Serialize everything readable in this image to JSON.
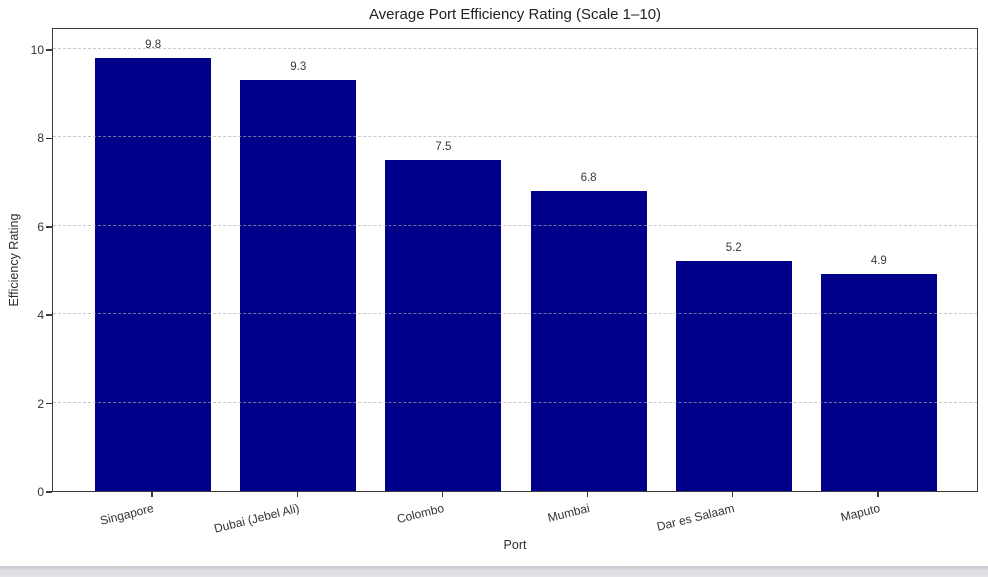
{
  "chart_data": {
    "type": "bar",
    "title": "Average Port Efficiency Rating (Scale 1–10)",
    "xlabel": "Port",
    "ylabel": "Efficiency Rating",
    "categories": [
      "Singapore",
      "Dubai (Jebel Ali)",
      "Colombo",
      "Mumbai",
      "Dar es Salaam",
      "Maputo"
    ],
    "values": [
      9.8,
      9.3,
      7.5,
      6.8,
      5.2,
      4.9
    ],
    "value_labels": [
      "9.8",
      "9.3",
      "7.5",
      "6.8",
      "5.2",
      "4.9"
    ],
    "yticks": [
      0,
      2,
      4,
      6,
      8,
      10
    ],
    "ylim": [
      0,
      10.5
    ],
    "bar_color": "#00008B",
    "grid": "horizontal-dashed",
    "legend": "none"
  }
}
